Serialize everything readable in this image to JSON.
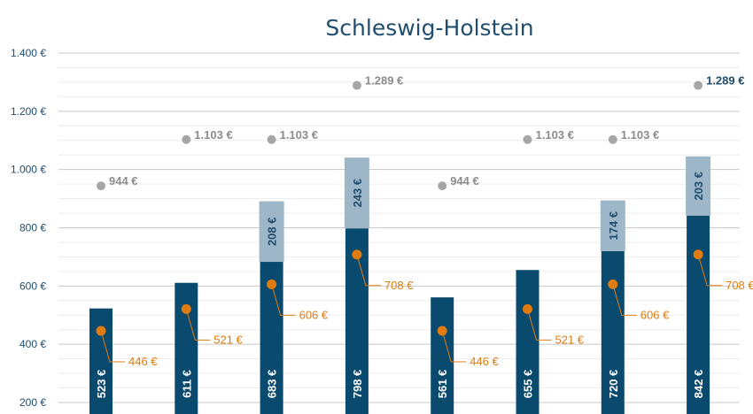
{
  "chart_data": {
    "type": "bar",
    "title": "Schleswig-Holstein",
    "ylim": [
      200,
      1400
    ],
    "yticks": [
      "200 €",
      "400 €",
      "600 €",
      "800 €",
      "1.000 €",
      "1.200 €",
      "1.400 €"
    ],
    "ytick_values": [
      200,
      400,
      600,
      800,
      1000,
      1200,
      1400
    ],
    "grid": true,
    "legend": "none",
    "colors": {
      "base": "#0b4a6f",
      "stack": "#9db7c9",
      "gray_marker": "#a6a6a6",
      "orange_marker": "#e07b0f",
      "text": "#1f4e6e"
    },
    "base_values": [
      523,
      611,
      683,
      798,
      561,
      655,
      720,
      842
    ],
    "base_labels": [
      "523 €",
      "611 €",
      "683 €",
      "798 €",
      "561 €",
      "655 €",
      "720 €",
      "842 €"
    ],
    "stack_values": [
      0,
      0,
      208,
      243,
      0,
      0,
      174,
      203
    ],
    "stack_labels": [
      "",
      "",
      "208 €",
      "243 €",
      "",
      "",
      "174 €",
      "203 €"
    ],
    "gray_values": [
      944,
      1103,
      1103,
      1289,
      944,
      1103,
      1103,
      1289
    ],
    "gray_labels": [
      "944 €",
      "1.103 €",
      "1.103 €",
      "1.289 €",
      "944 €",
      "1.103 €",
      "1.103 €",
      "1.289 €"
    ],
    "orange_values": [
      446,
      521,
      606,
      708,
      446,
      521,
      606,
      708
    ],
    "orange_labels": [
      "446 €",
      "521 €",
      "606 €",
      "708 €",
      "446 €",
      "521 €",
      "606 €",
      "708 €"
    ]
  }
}
